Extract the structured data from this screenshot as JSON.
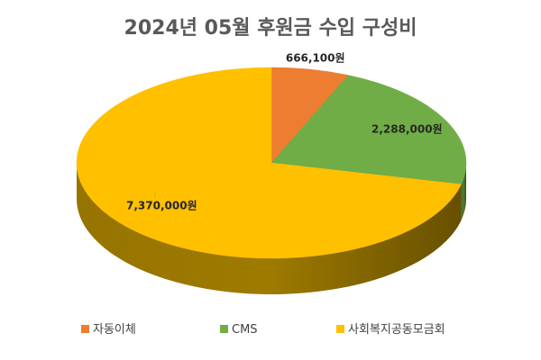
{
  "chart_data": {
    "type": "pie",
    "title": "2024년 05월 후원금 수입 구성비",
    "categories": [
      "자동이체",
      "CMS",
      "사회복지공동모금회"
    ],
    "values": [
      666100,
      2288000,
      7370000
    ],
    "labels": [
      "666,100원",
      "2,288,000원",
      "7,370,000원"
    ],
    "colors": [
      "#ED7D31",
      "#70AD47",
      "#FFC000"
    ],
    "side_colors": [
      "#A9561F",
      "#4E7A30",
      "#9E7A00"
    ],
    "legend": "bottom",
    "style": "3d"
  }
}
